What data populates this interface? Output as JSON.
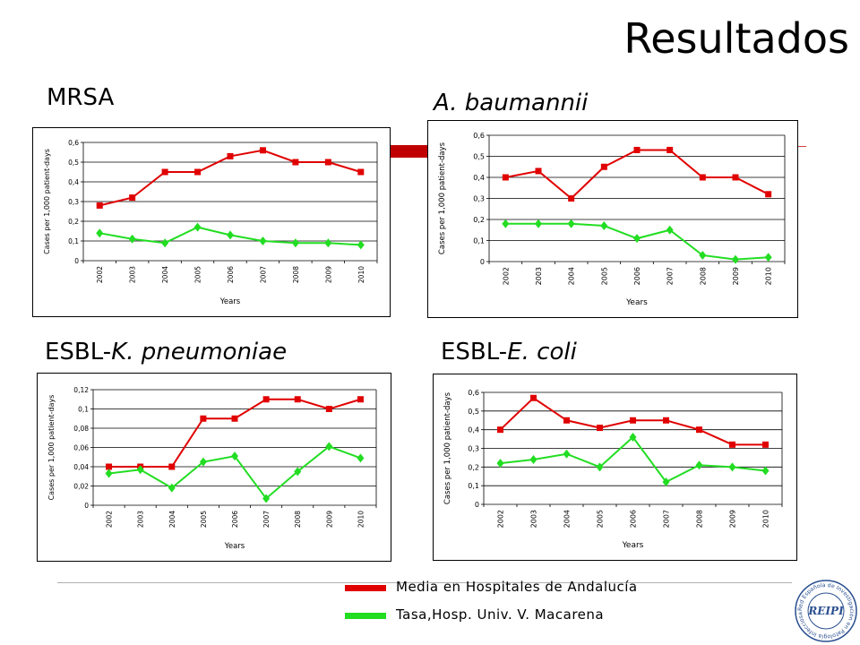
{
  "title": "Resultados",
  "colors": {
    "accent": "#c00000",
    "series_red": "#e00000",
    "series_green": "#22dd22"
  },
  "panels": [
    {
      "heading": "MRSA",
      "heading_italic": ""
    },
    {
      "heading": "",
      "heading_italic": "A. baumannii"
    },
    {
      "heading": "ESBL-",
      "heading_italic": "K. pneumoniae"
    },
    {
      "heading": "ESBL-",
      "heading_italic": "E. coli"
    }
  ],
  "legend": [
    {
      "label": "Media en Hospitales de Andalucía",
      "color": "#e00000"
    },
    {
      "label": "Tasa,Hosp. Univ. V. Macarena",
      "color": "#22dd22"
    }
  ],
  "logo": {
    "text": "REIPI",
    "ring_text": "Red Española de Investigación en Patología Infecciosa"
  },
  "chart_data": [
    {
      "type": "line",
      "categories": [
        "2002",
        "2003",
        "2004",
        "2005",
        "2006",
        "2007",
        "2008",
        "2009",
        "2010"
      ],
      "xlabel": "Years",
      "ylabel": "Cases per 1,000 patient-days",
      "ylim": [
        0,
        0.6
      ],
      "yticks": [
        "0",
        "0,1",
        "0,2",
        "0,3",
        "0,4",
        "0,5",
        "0,6"
      ],
      "series": [
        {
          "color": "#e00000",
          "marker": "square",
          "values": [
            0.28,
            0.32,
            0.45,
            0.45,
            0.53,
            0.56,
            0.5,
            0.5,
            0.45
          ]
        },
        {
          "color": "#22dd22",
          "marker": "diamond",
          "values": [
            0.14,
            0.11,
            0.09,
            0.17,
            0.13,
            0.1,
            0.09,
            0.09,
            0.08
          ]
        }
      ]
    },
    {
      "type": "line",
      "categories": [
        "2002",
        "2003",
        "2004",
        "2005",
        "2006",
        "2007",
        "2008",
        "2009",
        "2010"
      ],
      "xlabel": "Years",
      "ylabel": "Cases per 1,000 patient-days",
      "ylim": [
        0,
        0.6
      ],
      "yticks": [
        "0",
        "0,1",
        "0,2",
        "0,3",
        "0,4",
        "0,5",
        "0,6"
      ],
      "series": [
        {
          "color": "#e00000",
          "marker": "square",
          "values": [
            0.4,
            0.43,
            0.3,
            0.45,
            0.53,
            0.53,
            0.4,
            0.4,
            0.32
          ]
        },
        {
          "color": "#22dd22",
          "marker": "diamond",
          "values": [
            0.18,
            0.18,
            0.18,
            0.17,
            0.11,
            0.15,
            0.03,
            0.01,
            0.02
          ]
        }
      ]
    },
    {
      "type": "line",
      "categories": [
        "2002",
        "2003",
        "2004",
        "2005",
        "2006",
        "2007",
        "2008",
        "2009",
        "2010"
      ],
      "xlabel": "Years",
      "ylabel": "Cases per 1,000 patient-days",
      "ylim": [
        0,
        0.12
      ],
      "yticks": [
        "0",
        "0,02",
        "0,04",
        "0,06",
        "0,08",
        "0,1",
        "0,12"
      ],
      "series": [
        {
          "color": "#e00000",
          "marker": "square",
          "values": [
            0.04,
            0.04,
            0.04,
            0.09,
            0.09,
            0.11,
            0.11,
            0.1,
            0.11
          ]
        },
        {
          "color": "#22dd22",
          "marker": "diamond",
          "values": [
            0.033,
            0.037,
            0.018,
            0.045,
            0.051,
            0.007,
            0.035,
            0.061,
            0.049
          ]
        }
      ]
    },
    {
      "type": "line",
      "categories": [
        "2002",
        "2003",
        "2004",
        "2005",
        "2006",
        "2007",
        "2008",
        "2009",
        "2010"
      ],
      "xlabel": "Years",
      "ylabel": "Cases per 1,000 patient-days",
      "ylim": [
        0,
        0.6
      ],
      "yticks": [
        "0",
        "0,1",
        "0,2",
        "0,3",
        "0,4",
        "0,5",
        "0,6"
      ],
      "series": [
        {
          "color": "#e00000",
          "marker": "square",
          "values": [
            0.4,
            0.57,
            0.45,
            0.41,
            0.45,
            0.45,
            0.4,
            0.32,
            0.32
          ]
        },
        {
          "color": "#22dd22",
          "marker": "diamond",
          "values": [
            0.22,
            0.24,
            0.27,
            0.2,
            0.36,
            0.12,
            0.21,
            0.2,
            0.18
          ]
        }
      ]
    }
  ]
}
